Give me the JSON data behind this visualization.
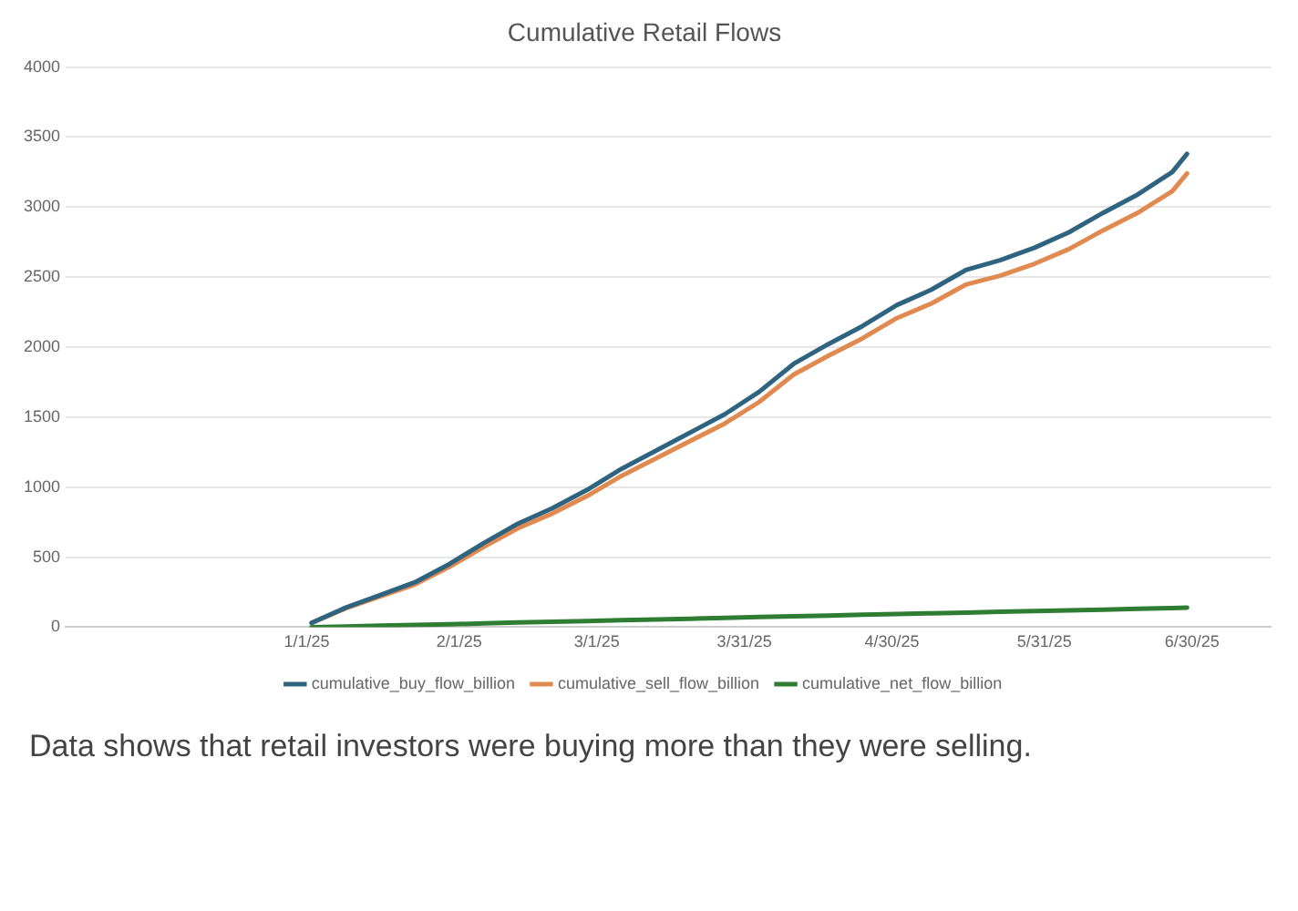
{
  "chart_data": {
    "type": "line",
    "title": "Cumulative Retail Flows",
    "x": [
      "2025-01-02",
      "2025-01-09",
      "2025-01-16",
      "2025-01-23",
      "2025-01-30",
      "2025-02-06",
      "2025-02-13",
      "2025-02-20",
      "2025-02-27",
      "2025-03-06",
      "2025-03-13",
      "2025-03-20",
      "2025-03-27",
      "2025-04-03",
      "2025-04-10",
      "2025-04-17",
      "2025-04-24",
      "2025-05-01",
      "2025-05-08",
      "2025-05-15",
      "2025-05-22",
      "2025-05-29",
      "2025-06-05",
      "2025-06-12",
      "2025-06-19",
      "2025-06-26",
      "2025-06-29"
    ],
    "series": [
      {
        "name": "cumulative_buy_flow_billion",
        "color": "#2e6480",
        "values": [
          30,
          140,
          230,
          320,
          450,
          600,
          740,
          850,
          980,
          1130,
          1260,
          1390,
          1520,
          1680,
          1880,
          2020,
          2150,
          2300,
          2410,
          2550,
          2620,
          2710,
          2820,
          2960,
          3090,
          3250,
          3380
        ]
      },
      {
        "name": "cumulative_sell_flow_billion",
        "color": "#e08a50",
        "values": [
          30,
          135,
          220,
          305,
          430,
          573,
          707,
          812,
          936,
          1080,
          1205,
          1330,
          1454,
          1608,
          1803,
          1937,
          2062,
          2207,
          2311,
          2446,
          2510,
          2595,
          2700,
          2835,
          2959,
          3114,
          3240
        ]
      },
      {
        "name": "cumulative_net_flow_billion",
        "color": "#2e7d32",
        "values": [
          0,
          5,
          10,
          15,
          20,
          27,
          33,
          38,
          44,
          50,
          55,
          60,
          66,
          72,
          77,
          83,
          88,
          93,
          99,
          104,
          110,
          115,
          120,
          125,
          131,
          136,
          140
        ]
      }
    ],
    "xlim": [
      "2024-11-13",
      "2025-07-16"
    ],
    "xticks": [
      {
        "value": "2025-01-01",
        "label": "1/1/25"
      },
      {
        "value": "2025-02-01",
        "label": "2/1/25"
      },
      {
        "value": "2025-03-01",
        "label": "3/1/25"
      },
      {
        "value": "2025-03-31",
        "label": "3/31/25"
      },
      {
        "value": "2025-04-30",
        "label": "4/30/25"
      },
      {
        "value": "2025-05-31",
        "label": "5/31/25"
      },
      {
        "value": "2025-06-30",
        "label": "6/30/25"
      }
    ],
    "ylim": [
      0,
      4000
    ],
    "yticks": [
      0,
      500,
      1000,
      1500,
      2000,
      2500,
      3000,
      3500,
      4000
    ],
    "grid": "y",
    "legend": "bottom",
    "marker": "none",
    "line_style": "solid",
    "annotations": [
      "Data shows that retail investors were buying more than they were selling."
    ]
  }
}
